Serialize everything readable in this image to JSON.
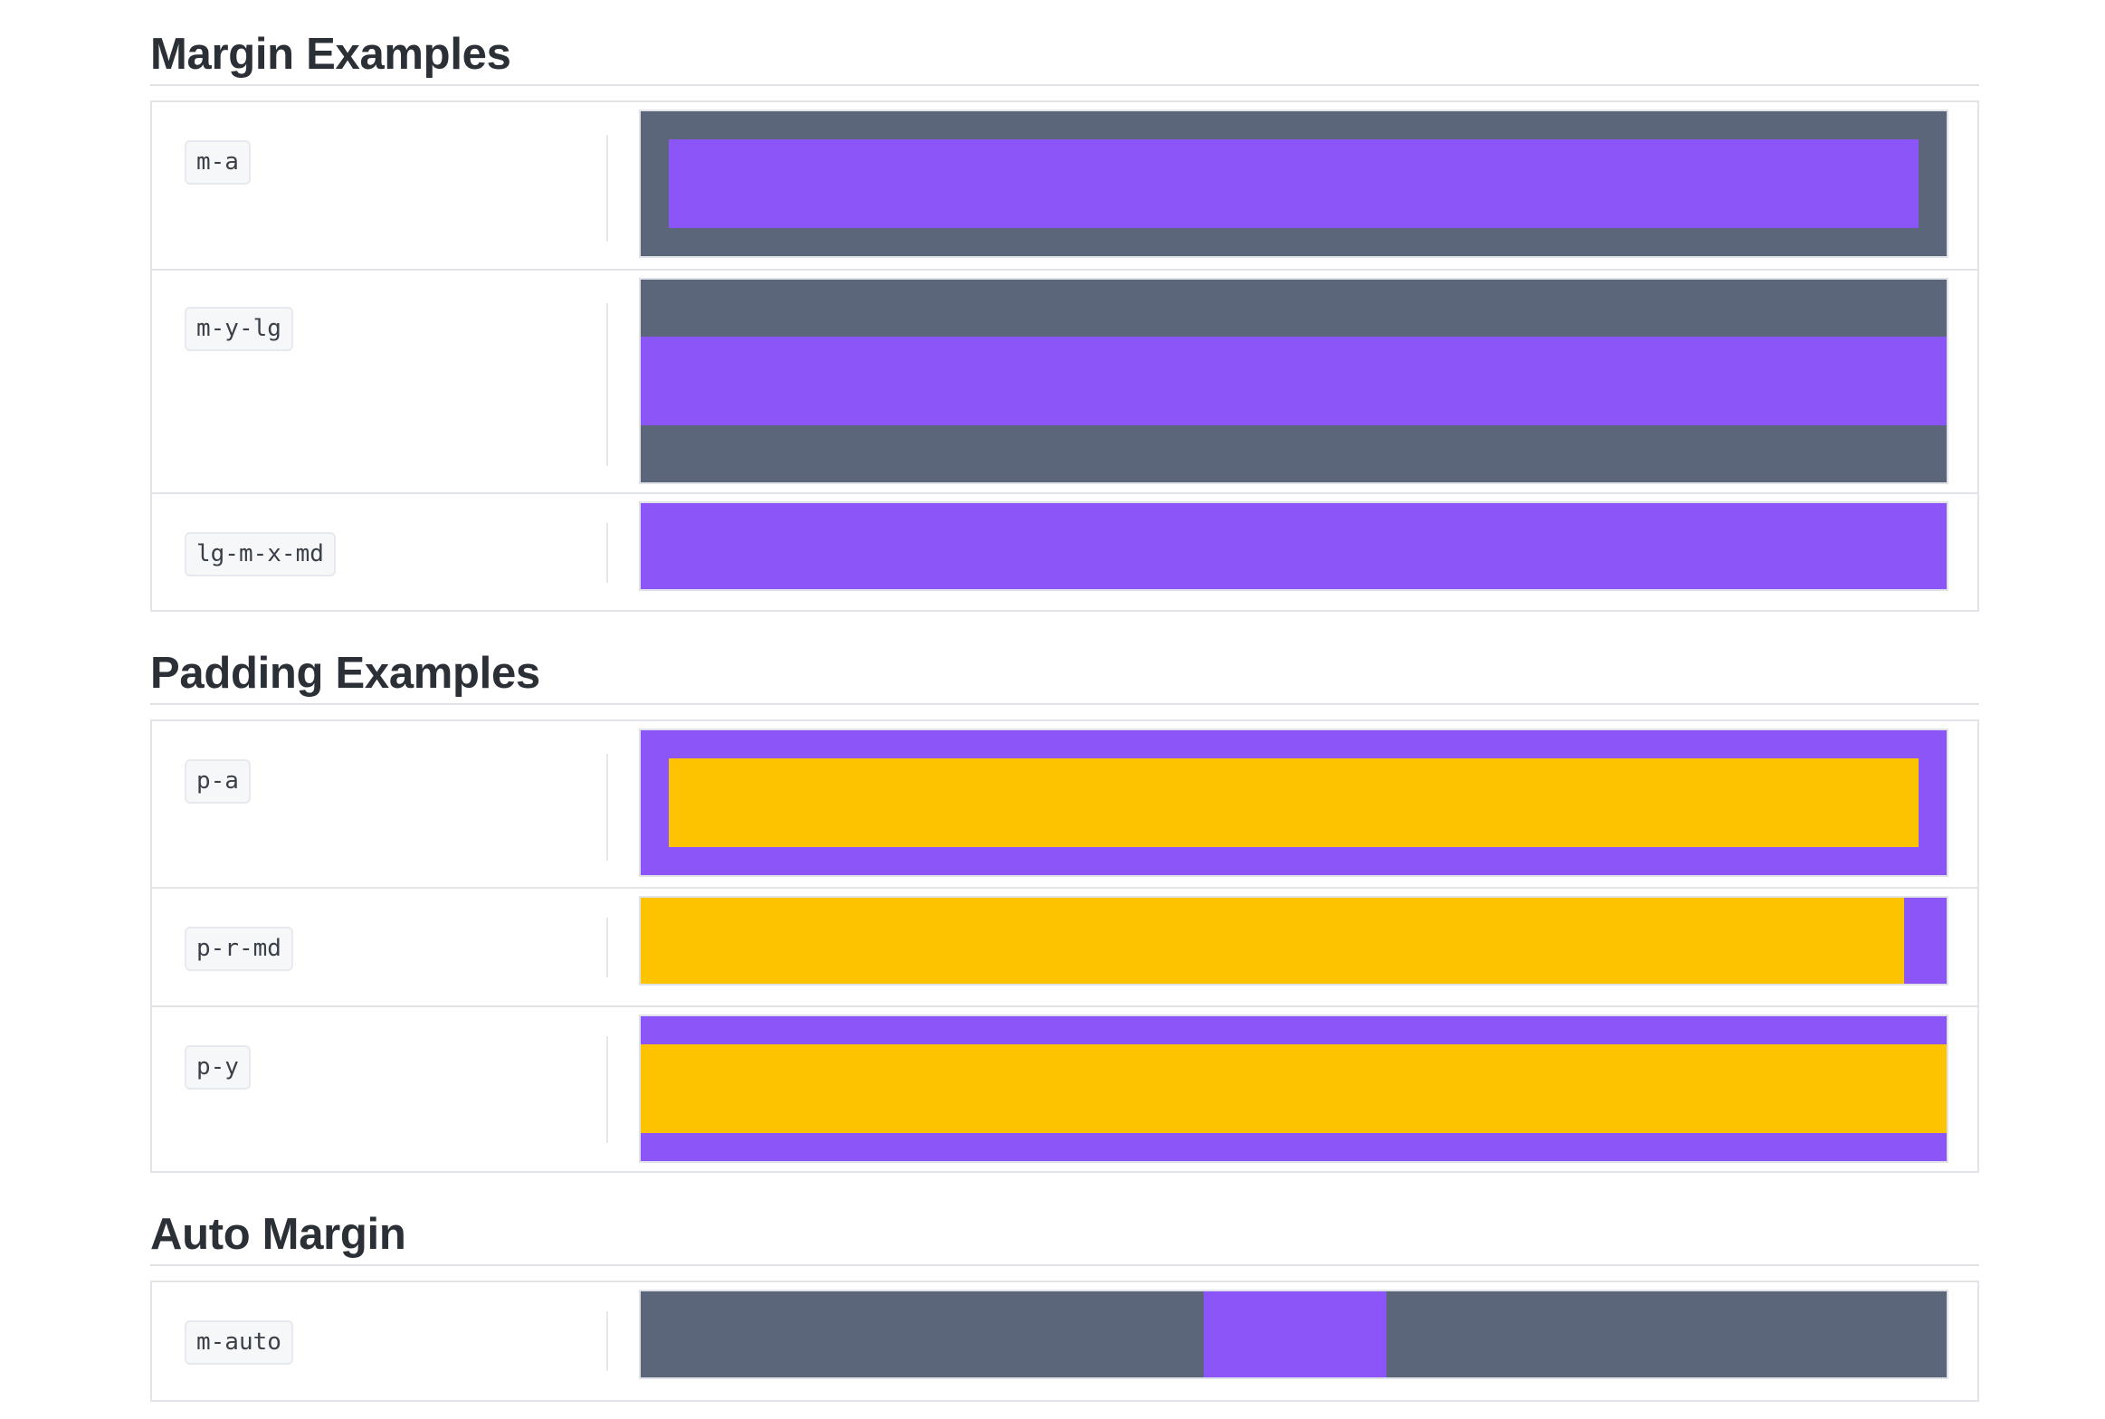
{
  "sections": [
    {
      "title": "Margin Examples",
      "rows": [
        {
          "code": "m-a"
        },
        {
          "code": "m-y-lg"
        },
        {
          "code": "lg-m-x-md"
        }
      ]
    },
    {
      "title": "Padding Examples",
      "rows": [
        {
          "code": "p-a"
        },
        {
          "code": "p-r-md"
        },
        {
          "code": "p-y"
        }
      ]
    },
    {
      "title": "Auto Margin",
      "rows": [
        {
          "code": "m-auto"
        }
      ]
    }
  ],
  "colors": {
    "outer_gray": "#5b667b",
    "purple": "#8b55f7",
    "yellow": "#fdc300",
    "heading": "#2b2f36",
    "border": "#e1e5e9"
  }
}
